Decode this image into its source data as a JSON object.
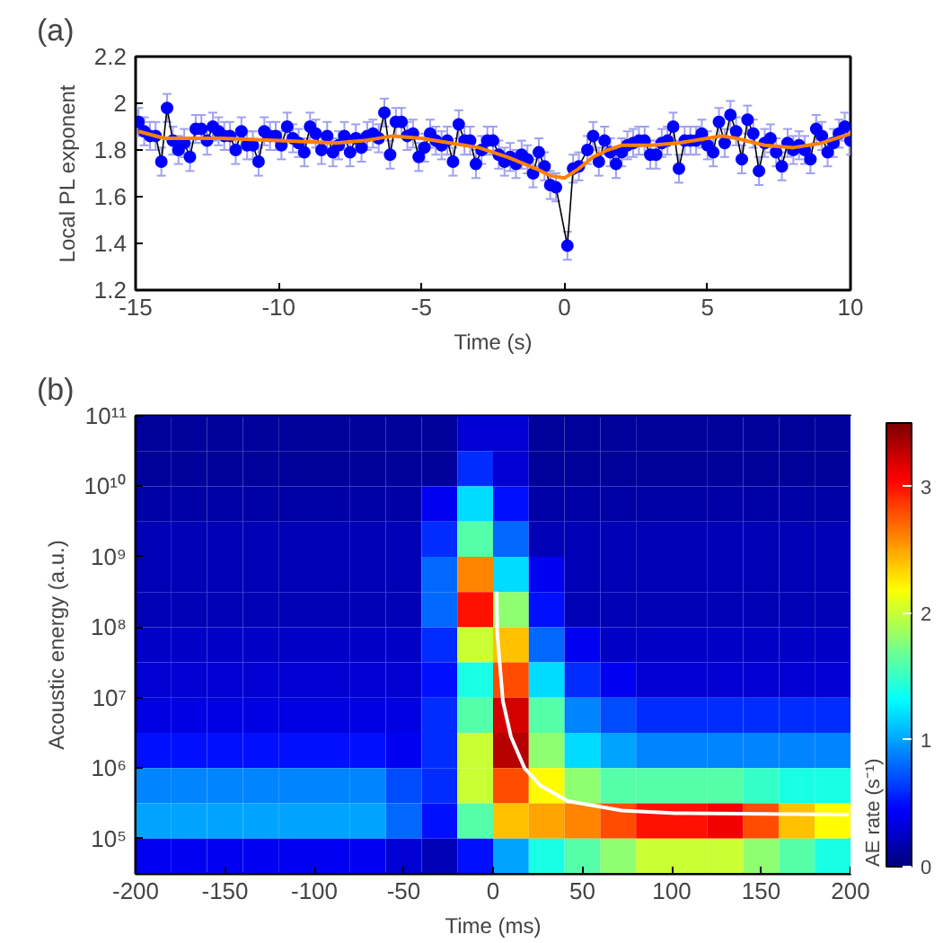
{
  "chart_data": [
    {
      "type": "line",
      "title": "(a)",
      "xlabel": "Time (s)",
      "ylabel": "Local PL exponent",
      "xlim": [
        -15,
        10
      ],
      "xticks": [
        -15,
        -10,
        -5,
        0,
        5,
        10
      ],
      "ylim": [
        1.2,
        2.2
      ],
      "yticks": [
        1.2,
        1.4,
        1.6,
        1.8,
        2,
        2.2
      ],
      "grid": false,
      "series": [
        {
          "color": "#0000ff",
          "marker": "circle",
          "x": [
            -14.9,
            -14.7,
            -14.5,
            -14.3,
            -14.1,
            -13.9,
            -13.7,
            -13.5,
            -13.3,
            -13.1,
            -12.9,
            -12.7,
            -12.5,
            -12.3,
            -12.1,
            -11.9,
            -11.7,
            -11.5,
            -11.3,
            -11.1,
            -10.9,
            -10.7,
            -10.5,
            -10.3,
            -10.1,
            -9.9,
            -9.7,
            -9.5,
            -9.3,
            -9.1,
            -8.9,
            -8.7,
            -8.5,
            -8.3,
            -8.1,
            -7.9,
            -7.7,
            -7.5,
            -7.3,
            -7.1,
            -6.9,
            -6.7,
            -6.5,
            -6.3,
            -6.1,
            -5.9,
            -5.7,
            -5.5,
            -5.3,
            -5.1,
            -4.9,
            -4.7,
            -4.5,
            -4.3,
            -4.1,
            -3.9,
            -3.7,
            -3.5,
            -3.3,
            -3.1,
            -2.9,
            -2.7,
            -2.5,
            -2.3,
            -2.1,
            -1.9,
            -1.7,
            -1.5,
            -1.3,
            -1.1,
            -0.9,
            -0.7,
            -0.5,
            -0.3,
            0.1,
            0.3,
            0.5,
            0.8,
            1.0,
            1.2,
            1.4,
            1.6,
            1.8,
            2.0,
            2.2,
            2.4,
            2.6,
            2.8,
            3.0,
            3.2,
            3.4,
            3.6,
            3.8,
            4.0,
            4.2,
            4.4,
            4.6,
            4.8,
            5.0,
            5.2,
            5.4,
            5.6,
            5.8,
            6.0,
            6.2,
            6.4,
            6.6,
            6.8,
            7.0,
            7.2,
            7.4,
            7.6,
            7.8,
            8.0,
            8.2,
            8.4,
            8.6,
            8.8,
            9.0,
            9.2,
            9.4,
            9.6,
            9.8,
            10.0
          ],
          "values": [
            1.92,
            1.88,
            1.86,
            1.86,
            1.75,
            1.98,
            1.84,
            1.8,
            1.83,
            1.77,
            1.89,
            1.89,
            1.84,
            1.9,
            1.88,
            1.86,
            1.86,
            1.8,
            1.88,
            1.82,
            1.82,
            1.75,
            1.88,
            1.86,
            1.86,
            1.82,
            1.9,
            1.85,
            1.83,
            1.79,
            1.9,
            1.87,
            1.8,
            1.86,
            1.79,
            1.82,
            1.86,
            1.79,
            1.85,
            1.81,
            1.86,
            1.87,
            1.85,
            1.96,
            1.78,
            1.92,
            1.92,
            1.86,
            1.87,
            1.77,
            1.81,
            1.87,
            1.84,
            1.82,
            1.84,
            1.75,
            1.91,
            1.84,
            1.84,
            1.74,
            1.8,
            1.84,
            1.84,
            1.78,
            1.75,
            1.77,
            1.74,
            1.78,
            1.76,
            1.7,
            1.79,
            1.73,
            1.65,
            1.64,
            1.39,
            1.72,
            1.73,
            1.8,
            1.86,
            1.75,
            1.84,
            1.79,
            1.74,
            1.79,
            1.82,
            1.83,
            1.84,
            1.84,
            1.78,
            1.78,
            1.83,
            1.84,
            1.9,
            1.72,
            1.84,
            1.84,
            1.84,
            1.87,
            1.82,
            1.79,
            1.92,
            1.83,
            1.95,
            1.88,
            1.76,
            1.93,
            1.87,
            1.71,
            1.83,
            1.85,
            1.79,
            1.73,
            1.83,
            1.8,
            1.82,
            1.8,
            1.76,
            1.89,
            1.86,
            1.79,
            1.83,
            1.87,
            1.9,
            1.84
          ],
          "errors": [
            0.06,
            0.06,
            0.06,
            0.06,
            0.06,
            0.06,
            0.06,
            0.06,
            0.06,
            0.06,
            0.06,
            0.06,
            0.06,
            0.06,
            0.06,
            0.06,
            0.06,
            0.06,
            0.06,
            0.06,
            0.06,
            0.06,
            0.06,
            0.06,
            0.06,
            0.06,
            0.06,
            0.06,
            0.06,
            0.06,
            0.06,
            0.06,
            0.06,
            0.06,
            0.06,
            0.06,
            0.06,
            0.06,
            0.06,
            0.06,
            0.06,
            0.06,
            0.06,
            0.06,
            0.06,
            0.06,
            0.06,
            0.06,
            0.06,
            0.06,
            0.06,
            0.06,
            0.06,
            0.06,
            0.06,
            0.06,
            0.06,
            0.06,
            0.06,
            0.06,
            0.06,
            0.06,
            0.06,
            0.06,
            0.06,
            0.06,
            0.06,
            0.06,
            0.06,
            0.06,
            0.06,
            0.06,
            0.06,
            0.06,
            0.06,
            0.06,
            0.06,
            0.06,
            0.06,
            0.06,
            0.06,
            0.06,
            0.06,
            0.06,
            0.06,
            0.06,
            0.06,
            0.06,
            0.06,
            0.06,
            0.06,
            0.06,
            0.06,
            0.06,
            0.06,
            0.06,
            0.06,
            0.06,
            0.06,
            0.06,
            0.06,
            0.06,
            0.06,
            0.06,
            0.06,
            0.06,
            0.06,
            0.06,
            0.06,
            0.06,
            0.06,
            0.06,
            0.06,
            0.06,
            0.06,
            0.06,
            0.06,
            0.06,
            0.06,
            0.06,
            0.06,
            0.06,
            0.06,
            0.06
          ]
        },
        {
          "color": "#ff8000",
          "marker": "none",
          "x": [
            -14.9,
            -14,
            -12,
            -10,
            -8,
            -7,
            -6,
            -5,
            -4,
            -3,
            -2,
            -1,
            -0.5,
            0,
            0.5,
            1,
            1.5,
            2,
            3,
            4,
            5,
            5.5,
            6,
            7,
            8,
            9,
            10
          ],
          "values": [
            1.88,
            1.85,
            1.85,
            1.84,
            1.83,
            1.84,
            1.86,
            1.85,
            1.83,
            1.81,
            1.77,
            1.72,
            1.69,
            1.68,
            1.72,
            1.77,
            1.8,
            1.82,
            1.82,
            1.83,
            1.85,
            1.86,
            1.85,
            1.82,
            1.81,
            1.83,
            1.87
          ]
        }
      ]
    },
    {
      "type": "heatmap",
      "title": "(b)",
      "xlabel": "Time (ms)",
      "ylabel": "Acoustic energy (a.u.)",
      "clabel": "AE rate (s⁻¹)",
      "log": "y",
      "xlim": [
        -200,
        200
      ],
      "xticks": [
        -200,
        -150,
        -100,
        -50,
        0,
        50,
        100,
        150,
        200
      ],
      "ylim": [
        31623,
        100000000000
      ],
      "yticks": [
        {
          "value": 100000,
          "label": "10⁵"
        },
        {
          "value": 1000000,
          "label": "10⁶"
        },
        {
          "value": 10000000,
          "label": "10⁷"
        },
        {
          "value": 100000000,
          "label": "10⁸"
        },
        {
          "value": 1000000000,
          "label": "10⁹"
        },
        {
          "value": 10000000000,
          "label": "10¹⁰"
        },
        {
          "value": 100000000000,
          "label": "10¹¹"
        }
      ],
      "clim": [
        0,
        3.5
      ],
      "cticks": [
        0,
        1,
        2,
        3
      ],
      "cells": [
        [
          0.1,
          0.1,
          0.1,
          0.1,
          0.1,
          0.1,
          0.1,
          0.1,
          0.1,
          0.3,
          0.3,
          0.1,
          0.1,
          0.1,
          0.1,
          0.1,
          0.1,
          0.1,
          0.1,
          0.1
        ],
        [
          0.1,
          0.1,
          0.1,
          0.1,
          0.1,
          0.1,
          0.1,
          0.1,
          0.1,
          0.6,
          0.3,
          0.1,
          0.1,
          0.1,
          0.1,
          0.1,
          0.1,
          0.1,
          0.1,
          0.1
        ],
        [
          0.15,
          0.15,
          0.15,
          0.15,
          0.15,
          0.15,
          0.15,
          0.15,
          0.4,
          1.2,
          0.5,
          0.15,
          0.15,
          0.15,
          0.15,
          0.15,
          0.15,
          0.15,
          0.15,
          0.15
        ],
        [
          0.2,
          0.2,
          0.2,
          0.2,
          0.2,
          0.2,
          0.2,
          0.2,
          0.6,
          1.6,
          0.8,
          0.2,
          0.2,
          0.2,
          0.2,
          0.2,
          0.2,
          0.2,
          0.2,
          0.2
        ],
        [
          0.2,
          0.2,
          0.2,
          0.2,
          0.2,
          0.2,
          0.2,
          0.2,
          0.8,
          2.6,
          1.2,
          0.4,
          0.2,
          0.2,
          0.2,
          0.2,
          0.2,
          0.2,
          0.2,
          0.2
        ],
        [
          0.2,
          0.2,
          0.2,
          0.2,
          0.2,
          0.2,
          0.2,
          0.2,
          0.8,
          3.0,
          1.8,
          0.5,
          0.2,
          0.2,
          0.2,
          0.2,
          0.2,
          0.2,
          0.2,
          0.2
        ],
        [
          0.25,
          0.25,
          0.25,
          0.25,
          0.25,
          0.25,
          0.25,
          0.25,
          0.6,
          2.0,
          2.4,
          0.8,
          0.4,
          0.25,
          0.25,
          0.25,
          0.25,
          0.25,
          0.25,
          0.25
        ],
        [
          0.3,
          0.3,
          0.3,
          0.3,
          0.3,
          0.3,
          0.3,
          0.3,
          0.5,
          1.4,
          2.8,
          1.2,
          0.6,
          0.4,
          0.3,
          0.3,
          0.3,
          0.3,
          0.3,
          0.3
        ],
        [
          0.35,
          0.35,
          0.35,
          0.35,
          0.35,
          0.35,
          0.35,
          0.35,
          0.6,
          1.6,
          3.2,
          1.6,
          0.9,
          0.7,
          0.6,
          0.6,
          0.6,
          0.6,
          0.6,
          0.6
        ],
        [
          0.5,
          0.5,
          0.5,
          0.5,
          0.5,
          0.5,
          0.5,
          0.4,
          0.6,
          2.0,
          3.3,
          1.8,
          1.2,
          1.0,
          0.9,
          0.9,
          0.9,
          0.9,
          0.9,
          0.9
        ],
        [
          0.9,
          0.9,
          0.9,
          0.9,
          0.9,
          0.9,
          0.9,
          0.7,
          0.6,
          2.0,
          2.8,
          2.2,
          1.8,
          1.6,
          1.6,
          1.6,
          1.6,
          1.5,
          1.4,
          1.4
        ],
        [
          1.0,
          1.0,
          1.0,
          1.0,
          1.0,
          1.0,
          1.0,
          0.8,
          0.5,
          1.6,
          2.4,
          2.5,
          2.6,
          2.8,
          3.0,
          3.0,
          3.1,
          2.8,
          2.4,
          2.2
        ],
        [
          0.4,
          0.4,
          0.4,
          0.4,
          0.4,
          0.4,
          0.4,
          0.3,
          0.2,
          0.5,
          1.0,
          1.4,
          1.6,
          1.8,
          2.0,
          2.0,
          2.0,
          1.8,
          1.6,
          1.4
        ]
      ],
      "series": [
        {
          "type": "line",
          "color": "#ffffff",
          "x": [
            2,
            2.4,
            5.5,
            10,
            17.6,
            26.7,
            41.8,
            72,
            102,
            199
          ],
          "values": [
            320000000,
            80000000,
            9000000,
            2800000,
            1000000,
            560000,
            340000,
            250000,
            230000,
            220000
          ]
        }
      ]
    }
  ]
}
